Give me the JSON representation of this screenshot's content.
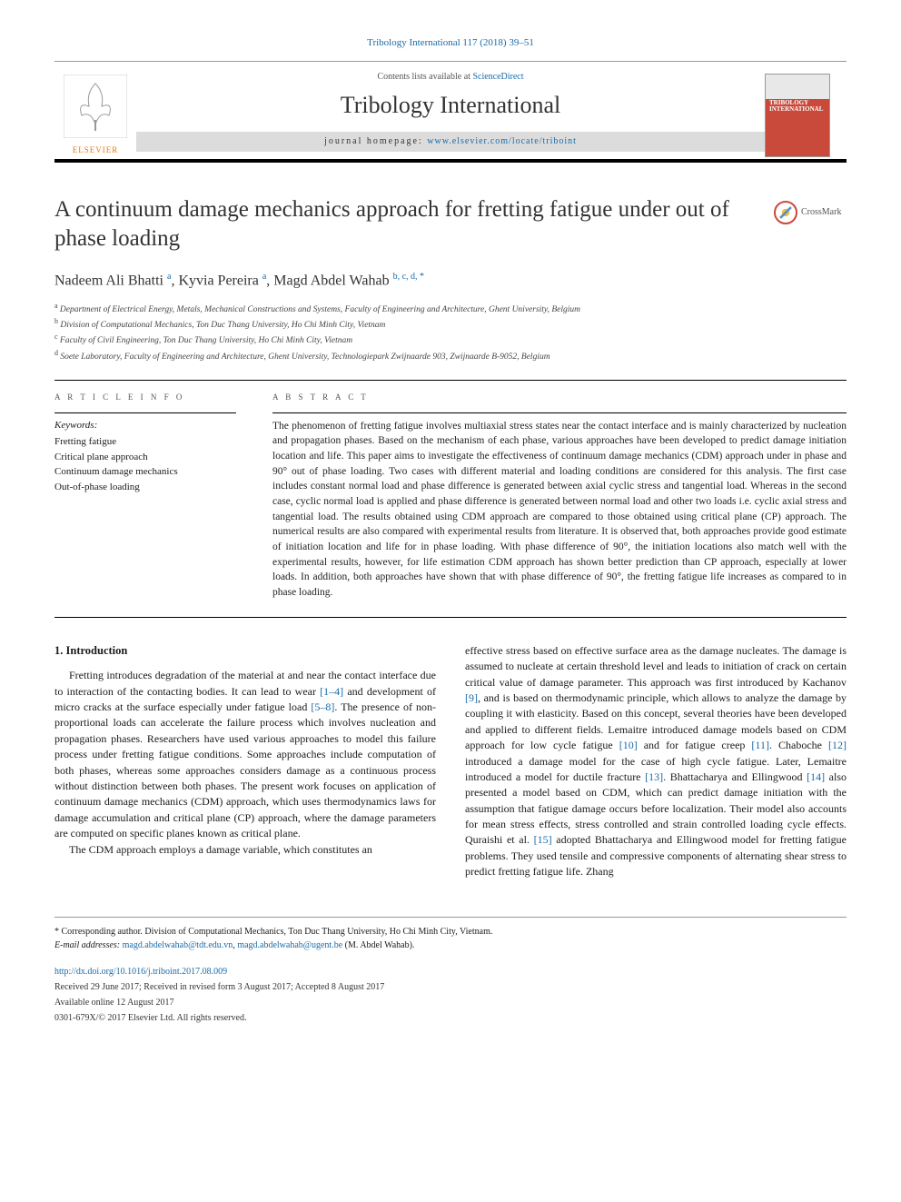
{
  "citation": "Tribology International 117 (2018) 39–51",
  "header": {
    "contents_prefix": "Contents lists available at ",
    "contents_link": "ScienceDirect",
    "journal_name": "Tribology International",
    "homepage_prefix": "journal homepage: ",
    "homepage_url": "www.elsevier.com/locate/triboint",
    "publisher": "ELSEVIER",
    "cover_title": "TRIBOLOGY INTERNATIONAL"
  },
  "article": {
    "title": "A continuum damage mechanics approach for fretting fatigue under out of phase loading",
    "crossmark": "CrossMark",
    "authors_html": "Nadeem Ali Bhatti <sup>a</sup>, Kyvia Pereira <sup>a</sup>, Magd Abdel Wahab <sup>b, c, d, *</sup>",
    "affiliations": [
      "a Department of Electrical Energy, Metals, Mechanical Constructions and Systems, Faculty of Engineering and Architecture, Ghent University, Belgium",
      "b Division of Computational Mechanics, Ton Duc Thang University, Ho Chi Minh City, Vietnam",
      "c Faculty of Civil Engineering, Ton Duc Thang University, Ho Chi Minh City, Vietnam",
      "d Soete Laboratory, Faculty of Engineering and Architecture, Ghent University, Technologiepark Zwijnaarde 903, Zwijnaarde B-9052, Belgium"
    ]
  },
  "info": {
    "article_info_label": "A R T I C L E  I N F O",
    "abstract_label": "A B S T R A C T",
    "keywords_label": "Keywords:",
    "keywords": [
      "Fretting fatigue",
      "Critical plane approach",
      "Continuum damage mechanics",
      "Out-of-phase loading"
    ],
    "abstract_text": "The phenomenon of fretting fatigue involves multiaxial stress states near the contact interface and is mainly characterized by nucleation and propagation phases. Based on the mechanism of each phase, various approaches have been developed to predict damage initiation location and life. This paper aims to investigate the effectiveness of continuum damage mechanics (CDM) approach under in phase and 90° out of phase loading. Two cases with different material and loading conditions are considered for this analysis. The first case includes constant normal load and phase difference is generated between axial cyclic stress and tangential load. Whereas in the second case, cyclic normal load is applied and phase difference is generated between normal load and other two loads i.e. cyclic axial stress and tangential load. The results obtained using CDM approach are compared to those obtained using critical plane (CP) approach. The numerical results are also compared with experimental results from literature. It is observed that, both approaches provide good estimate of initiation location and life for in phase loading. With phase difference of 90°, the initiation locations also match well with the experimental results, however, for life estimation CDM approach has shown better prediction than CP approach, especially at lower loads. In addition, both approaches have shown that with phase difference of 90°, the fretting fatigue life increases as compared to in phase loading."
  },
  "body": {
    "intro_heading": "1. Introduction",
    "col1_p1": "Fretting introduces degradation of the material at and near the contact interface due to interaction of the contacting bodies. It can lead to wear [1–4] and development of micro cracks at the surface especially under fatigue load [5–8]. The presence of non-proportional loads can accelerate the failure process which involves nucleation and propagation phases. Researchers have used various approaches to model this failure process under fretting fatigue conditions. Some approaches include computation of both phases, whereas some approaches considers damage as a continuous process without distinction between both phases. The present work focuses on application of continuum damage mechanics (CDM) approach, which uses thermodynamics laws for damage accumulation and critical plane (CP) approach, where the damage parameters are computed on specific planes known as critical plane.",
    "col1_p2": "The CDM approach employs a damage variable, which constitutes an",
    "col2_p1": "effective stress based on effective surface area as the damage nucleates. The damage is assumed to nucleate at certain threshold level and leads to initiation of crack on certain critical value of damage parameter. This approach was first introduced by Kachanov [9], and is based on thermodynamic principle, which allows to analyze the damage by coupling it with elasticity. Based on this concept, several theories have been developed and applied to different fields. Lemaitre introduced damage models based on CDM approach for low cycle fatigue [10] and for fatigue creep [11]. Chaboche [12] introduced a damage model for the case of high cycle fatigue. Later, Lemaitre introduced a model for ductile fracture [13]. Bhattacharya and Ellingwood [14] also presented a model based on CDM, which can predict damage initiation with the assumption that fatigue damage occurs before localization. Their model also accounts for mean stress effects, stress controlled and strain controlled loading cycle effects. Quraishi et al. [15] adopted Bhattacharya and Ellingwood model for fretting fatigue problems. They used tensile and compressive components of alternating shear stress to predict fretting fatigue life. Zhang",
    "refs": {
      "r1_4": "[1–4]",
      "r5_8": "[5–8]",
      "r9": "[9]",
      "r10": "[10]",
      "r11": "[11]",
      "r12": "[12]",
      "r13": "[13]",
      "r14": "[14]",
      "r15": "[15]"
    }
  },
  "footer": {
    "corresponding": "* Corresponding author. Division of Computational Mechanics, Ton Duc Thang University, Ho Chi Minh City, Vietnam.",
    "email_label": "E-mail addresses: ",
    "email1": "magd.abdelwahab@tdt.edu.vn",
    "email2": "magd.abdelwahab@ugent.be",
    "email_suffix": " (M. Abdel Wahab).",
    "doi": "http://dx.doi.org/10.1016/j.triboint.2017.08.009",
    "received": "Received 29 June 2017; Received in revised form 3 August 2017; Accepted 8 August 2017",
    "available": "Available online 12 August 2017",
    "copyright": "0301-679X/© 2017 Elsevier Ltd. All rights reserved."
  },
  "colors": {
    "link": "#1a6ba8",
    "elsevier_orange": "#e8790c",
    "cover_red": "#c94a3b",
    "text": "#1a1a1a",
    "grey_bar": "#dcdcdc"
  },
  "typography": {
    "title_fontsize": 25,
    "journal_fontsize": 26,
    "body_fontsize": 12,
    "abstract_fontsize": 11.5,
    "affiliation_fontsize": 9.5
  }
}
